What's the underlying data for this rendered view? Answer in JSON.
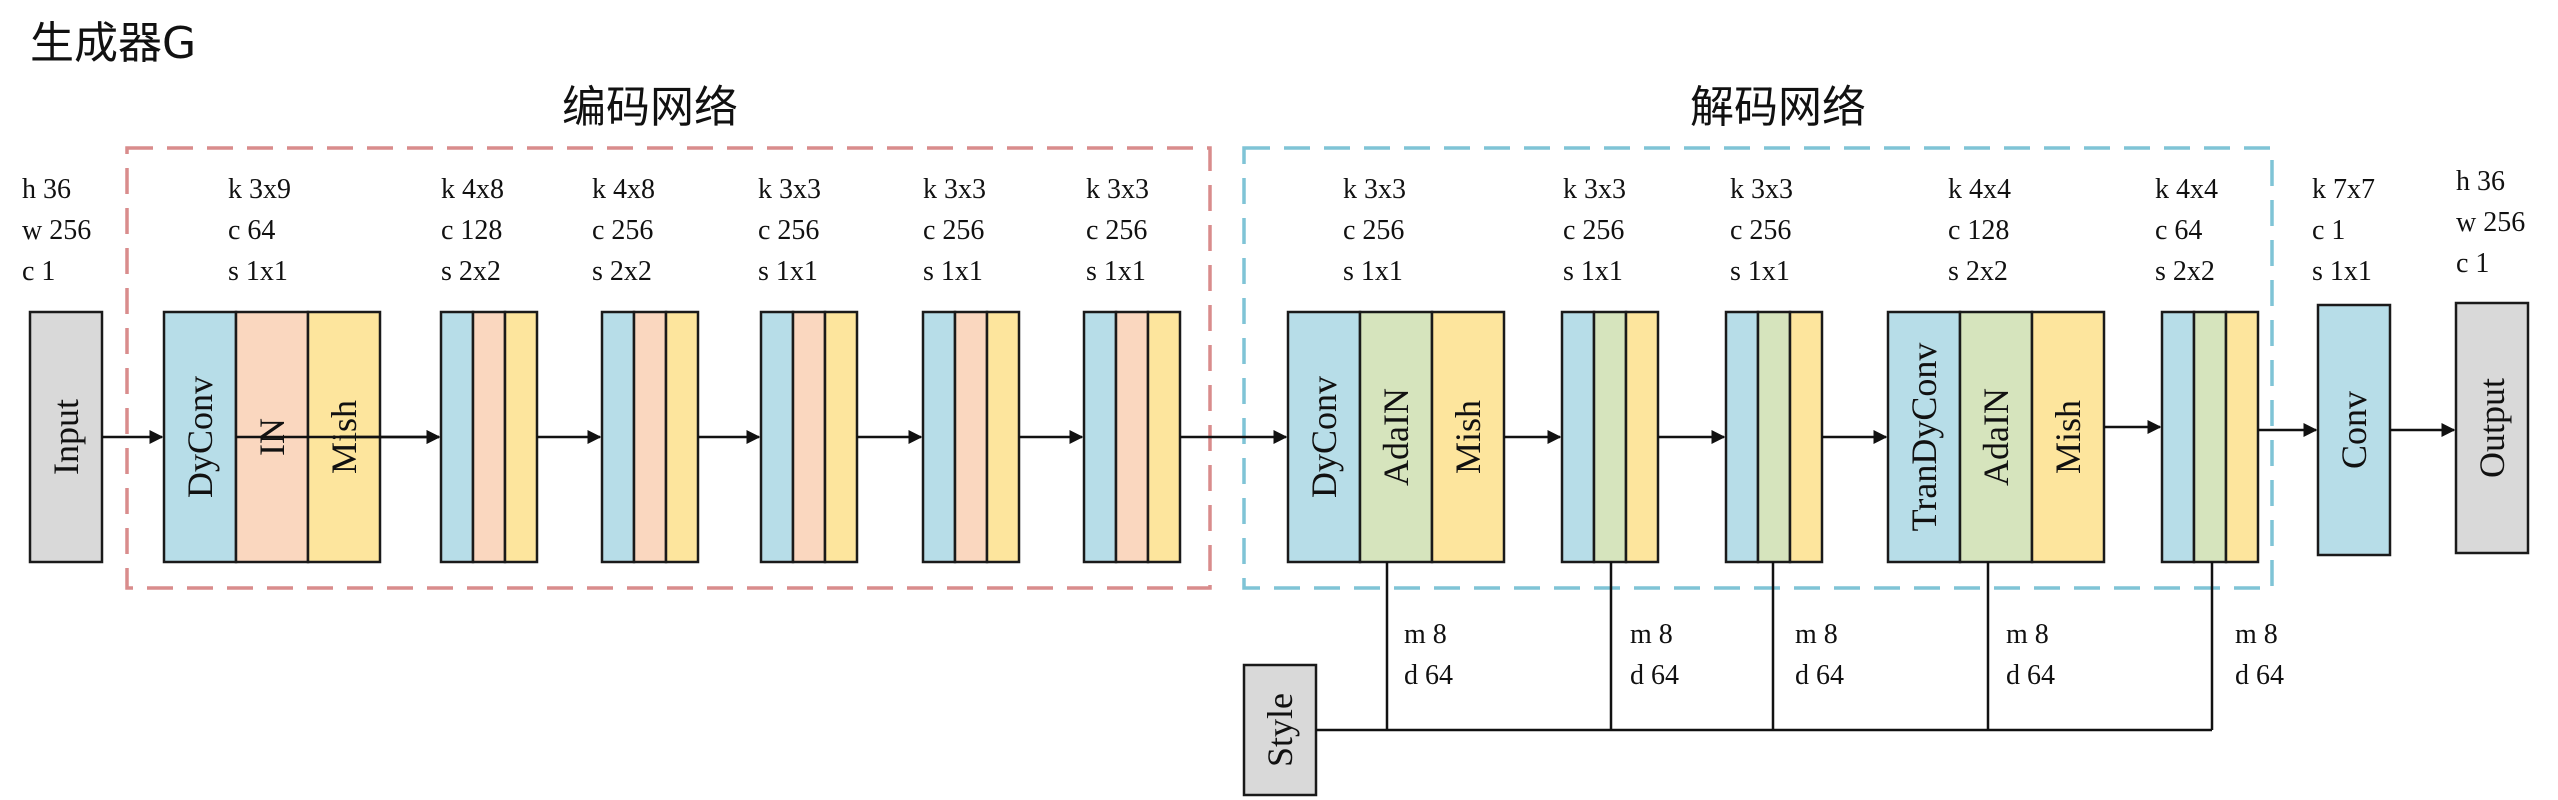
{
  "title": "生成器G",
  "colors": {
    "conv": "#b7dde8",
    "in": "#fad7bf",
    "mish": "#fde59d",
    "adain": "#d6e4bd",
    "io": "#d9d9d9",
    "encoder_border": "#d98c8c",
    "decoder_border": "#7fc4d6"
  },
  "groups": {
    "encoder": {
      "label": "编码网络"
    },
    "decoder": {
      "label": "解码网络"
    }
  },
  "input": {
    "label": "Input",
    "params": [
      "h 36",
      "w 256",
      "c 1"
    ]
  },
  "output": {
    "label": "Output",
    "params": [
      "h 36",
      "w 256",
      "c 1"
    ]
  },
  "style": {
    "label": "Style"
  },
  "encoder_blocks": [
    {
      "params": [
        "k 3x9",
        "c 64",
        "s 1x1"
      ],
      "layers": [
        {
          "type": "conv",
          "label": "DyConv"
        },
        {
          "type": "in",
          "label": "IN"
        },
        {
          "type": "mish",
          "label": "Mish"
        }
      ]
    },
    {
      "params": [
        "k 4x8",
        "c 128",
        "s 2x2"
      ],
      "layers": [
        {
          "type": "conv"
        },
        {
          "type": "in"
        },
        {
          "type": "mish"
        }
      ]
    },
    {
      "params": [
        "k 4x8",
        "c 256",
        "s 2x2"
      ],
      "layers": [
        {
          "type": "conv"
        },
        {
          "type": "in"
        },
        {
          "type": "mish"
        }
      ]
    },
    {
      "params": [
        "k 3x3",
        "c 256",
        "s 1x1"
      ],
      "layers": [
        {
          "type": "conv"
        },
        {
          "type": "in"
        },
        {
          "type": "mish"
        }
      ]
    },
    {
      "params": [
        "k 3x3",
        "c 256",
        "s 1x1"
      ],
      "layers": [
        {
          "type": "conv"
        },
        {
          "type": "in"
        },
        {
          "type": "mish"
        }
      ]
    },
    {
      "params": [
        "k 3x3",
        "c 256",
        "s 1x1"
      ],
      "layers": [
        {
          "type": "conv"
        },
        {
          "type": "in"
        },
        {
          "type": "mish"
        }
      ]
    }
  ],
  "decoder_blocks": [
    {
      "params": [
        "k 3x3",
        "c 256",
        "s 1x1"
      ],
      "style_params": [
        "m 8",
        "d 64"
      ],
      "layers": [
        {
          "type": "conv",
          "label": "DyConv"
        },
        {
          "type": "adain",
          "label": "AdaIN"
        },
        {
          "type": "mish",
          "label": "Mish"
        }
      ]
    },
    {
      "params": [
        "k 3x3",
        "c 256",
        "s 1x1"
      ],
      "style_params": [
        "m 8",
        "d 64"
      ],
      "layers": [
        {
          "type": "conv"
        },
        {
          "type": "adain"
        },
        {
          "type": "mish"
        }
      ]
    },
    {
      "params": [
        "k 3x3",
        "c 256",
        "s 1x1"
      ],
      "style_params": [
        "m 8",
        "d 64"
      ],
      "layers": [
        {
          "type": "conv"
        },
        {
          "type": "adain"
        },
        {
          "type": "mish"
        }
      ]
    },
    {
      "params": [
        "k 4x4",
        "c 128",
        "s 2x2"
      ],
      "style_params": [
        "m 8",
        "d 64"
      ],
      "layers": [
        {
          "type": "conv",
          "label": "TranDyConv"
        },
        {
          "type": "adain",
          "label": "AdaIN"
        },
        {
          "type": "mish",
          "label": "Mish"
        }
      ]
    },
    {
      "params": [
        "k 4x4",
        "c 64",
        "s 2x2"
      ],
      "style_params": [
        "m 8",
        "d 64"
      ],
      "layers": [
        {
          "type": "conv"
        },
        {
          "type": "adain"
        },
        {
          "type": "mish"
        }
      ]
    }
  ],
  "final_conv": {
    "label": "Conv",
    "params": [
      "k 7x7",
      "c 1",
      "s 1x1"
    ]
  }
}
